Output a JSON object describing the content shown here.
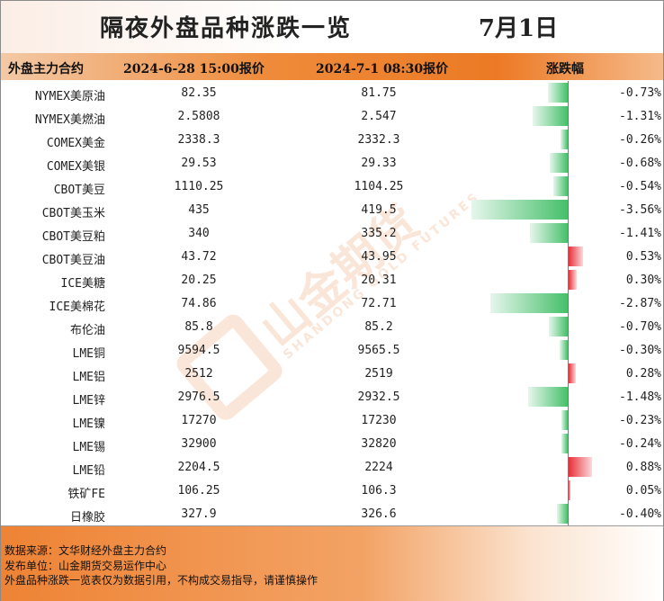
{
  "title": "隔夜外盘品种涨跌一览",
  "date": "7月1日",
  "header": {
    "col_name": "外盘主力合约",
    "col_prev": "2024-6-28 15:00报价",
    "col_curr": "2024-7-1 08:30报价",
    "col_change": "涨跌幅"
  },
  "rows": [
    {
      "name": "NYMEX美原油",
      "prev": "82.35",
      "curr": "81.75",
      "pct": "-0.73%",
      "value": -0.73
    },
    {
      "name": "NYMEX美燃油",
      "prev": "2.5808",
      "curr": "2.547",
      "pct": "-1.31%",
      "value": -1.31
    },
    {
      "name": "COMEX美金",
      "prev": "2338.3",
      "curr": "2332.3",
      "pct": "-0.26%",
      "value": -0.26
    },
    {
      "name": "COMEX美银",
      "prev": "29.53",
      "curr": "29.33",
      "pct": "-0.68%",
      "value": -0.68
    },
    {
      "name": "CBOT美豆",
      "prev": "1110.25",
      "curr": "1104.25",
      "pct": "-0.54%",
      "value": -0.54
    },
    {
      "name": "CBOT美玉米",
      "prev": "435",
      "curr": "419.5",
      "pct": "-3.56%",
      "value": -3.56
    },
    {
      "name": "CBOT美豆粕",
      "prev": "340",
      "curr": "335.2",
      "pct": "-1.41%",
      "value": -1.41
    },
    {
      "name": "CBOT美豆油",
      "prev": "43.72",
      "curr": "43.95",
      "pct": "0.53%",
      "value": 0.53
    },
    {
      "name": "ICE美糖",
      "prev": "20.25",
      "curr": "20.31",
      "pct": "0.30%",
      "value": 0.3
    },
    {
      "name": "ICE美棉花",
      "prev": "74.86",
      "curr": "72.71",
      "pct": "-2.87%",
      "value": -2.87
    },
    {
      "name": "布伦油",
      "prev": "85.8",
      "curr": "85.2",
      "pct": "-0.70%",
      "value": -0.7
    },
    {
      "name": "LME铜",
      "prev": "9594.5",
      "curr": "9565.5",
      "pct": "-0.30%",
      "value": -0.3
    },
    {
      "name": "LME铝",
      "prev": "2512",
      "curr": "2519",
      "pct": "0.28%",
      "value": 0.28
    },
    {
      "name": "LME锌",
      "prev": "2976.5",
      "curr": "2932.5",
      "pct": "-1.48%",
      "value": -1.48
    },
    {
      "name": "LME镍",
      "prev": "17270",
      "curr": "17230",
      "pct": "-0.23%",
      "value": -0.23
    },
    {
      "name": "LME锡",
      "prev": "32900",
      "curr": "32820",
      "pct": "-0.24%",
      "value": -0.24
    },
    {
      "name": "LME铅",
      "prev": "2204.5",
      "curr": "2224",
      "pct": "0.88%",
      "value": 0.88
    },
    {
      "name": "铁矿FE",
      "prev": "106.25",
      "curr": "106.3",
      "pct": "0.05%",
      "value": 0.05
    },
    {
      "name": "日橡胶",
      "prev": "327.9",
      "curr": "326.6",
      "pct": "-0.40%",
      "value": -0.4
    }
  ],
  "watermark": {
    "text": "山金期货",
    "sub": "SHANDONG GOLD FUTURES"
  },
  "footer": {
    "line1": "数据来源：文华财经外盘主力合约",
    "line2": "发布单位：山金期货交易运作中心",
    "line3": "外盘品种涨跌一览表仅为数据引用，不构成交易指导，请谨慎操作"
  },
  "colors": {
    "accent": "#ec7a25",
    "up": "#e8303a",
    "down": "#45c06a"
  }
}
